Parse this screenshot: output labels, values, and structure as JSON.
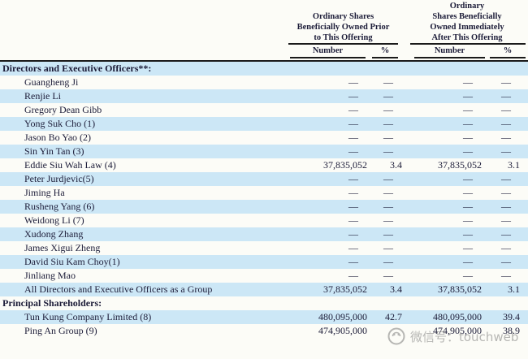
{
  "header": {
    "col_groups": [
      {
        "lines": [
          "Ordinary Shares",
          "Beneficially Owned Prior",
          "to This Offering"
        ],
        "sub": [
          "Number",
          "%"
        ]
      },
      {
        "lines": [
          "Ordinary",
          "Shares Beneficially",
          "Owned Immediately",
          "After This Offering"
        ],
        "sub": [
          "Number",
          "%"
        ]
      }
    ]
  },
  "table": {
    "rows": [
      {
        "label": "Directors and Executive Officers**:",
        "section": true,
        "values": [
          "",
          "",
          "",
          ""
        ]
      },
      {
        "label": "Guangheng Ji",
        "values": [
          "—",
          "—",
          "—",
          "—"
        ]
      },
      {
        "label": "Renjie Li",
        "values": [
          "—",
          "—",
          "—",
          "—"
        ]
      },
      {
        "label": "Gregory Dean Gibb",
        "values": [
          "—",
          "—",
          "—",
          "—"
        ]
      },
      {
        "label": "Yong Suk Cho (1)",
        "values": [
          "—",
          "—",
          "—",
          "—"
        ]
      },
      {
        "label": "Jason Bo Yao (2)",
        "values": [
          "—",
          "—",
          "—",
          "—"
        ]
      },
      {
        "label": "Sin Yin Tan (3)",
        "values": [
          "—",
          "—",
          "—",
          "—"
        ]
      },
      {
        "label": "Eddie Siu Wah Law (4)",
        "values": [
          "37,835,052",
          "3.4",
          "37,835,052",
          "3.1"
        ]
      },
      {
        "label": "Peter Jurdjevic(5)",
        "values": [
          "—",
          "—",
          "—",
          "—"
        ]
      },
      {
        "label": "Jiming Ha",
        "values": [
          "—",
          "—",
          "—",
          "—"
        ]
      },
      {
        "label": "Rusheng Yang (6)",
        "values": [
          "—",
          "—",
          "—",
          "—"
        ]
      },
      {
        "label": "Weidong Li (7)",
        "values": [
          "—",
          "—",
          "—",
          "—"
        ]
      },
      {
        "label": "Xudong Zhang",
        "values": [
          "—",
          "—",
          "—",
          "—"
        ]
      },
      {
        "label": "James Xigui Zheng",
        "values": [
          "—",
          "—",
          "—",
          "—"
        ]
      },
      {
        "label": "David Siu Kam Choy(1)",
        "values": [
          "—",
          "—",
          "—",
          "—"
        ]
      },
      {
        "label": "Jinliang Mao",
        "values": [
          "—",
          "—",
          "—",
          "—"
        ]
      },
      {
        "label": "All Directors and Executive Officers as a Group",
        "values": [
          "37,835,052",
          "3.4",
          "37,835,052",
          "3.1"
        ]
      },
      {
        "label": "Principal Shareholders:",
        "section": true,
        "values": [
          "",
          "",
          "",
          ""
        ]
      },
      {
        "label": "Tun Kung Company Limited (8)",
        "values": [
          "480,095,000",
          "42.7",
          "480,095,000",
          "39.4"
        ]
      },
      {
        "label": "Ping An Group (9)",
        "values": [
          "474,905,000",
          "",
          "474,905,000",
          "38.9"
        ]
      }
    ]
  },
  "watermark": {
    "text": "微信号：touchweb",
    "icon": "wechat-icon",
    "color": "#7d7d7d"
  },
  "colors": {
    "row_shaded": "#cce7f6",
    "text": "#1c1c38",
    "rule": "#1a1a1a",
    "background": "#fcfcf7"
  }
}
